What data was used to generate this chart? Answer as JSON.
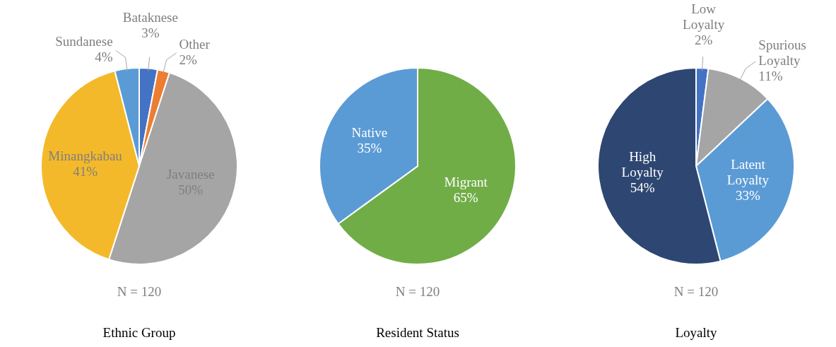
{
  "chart_data": [
    {
      "type": "pie",
      "title": "Ethnic Group",
      "categories": [
        "Bataknese",
        "Other",
        "Javanese",
        "Minangkabau",
        "Sundanese"
      ],
      "values": [
        3,
        2,
        50,
        41,
        4
      ],
      "colors": [
        "#4472c4",
        "#ed7d31",
        "#a5a5a5",
        "#f4b92a",
        "#5b9bd5"
      ],
      "value_labels": [
        "3%",
        "2%",
        "50%",
        "41%",
        "4%"
      ],
      "annotations": [
        "N = 120"
      ]
    },
    {
      "type": "pie",
      "title": "Resident Status",
      "categories": [
        "Migrant",
        "Native"
      ],
      "values": [
        65,
        35
      ],
      "colors": [
        "#70ad47",
        "#5b9bd5"
      ],
      "value_labels": [
        "65%",
        "35%"
      ],
      "annotations": [
        "N = 120"
      ]
    },
    {
      "type": "pie",
      "title": "Loyalty",
      "categories": [
        "Low Loyalty",
        "Spurious Loyalty",
        "Latent Loyalty",
        "High Loyalty"
      ],
      "values": [
        2,
        11,
        33,
        54
      ],
      "colors": [
        "#4472c4",
        "#a5a5a5",
        "#5b9bd5",
        "#2e4672"
      ],
      "value_labels": [
        "2%",
        "11%",
        "33%",
        "54%"
      ],
      "annotations": [
        "N = 120"
      ]
    }
  ]
}
